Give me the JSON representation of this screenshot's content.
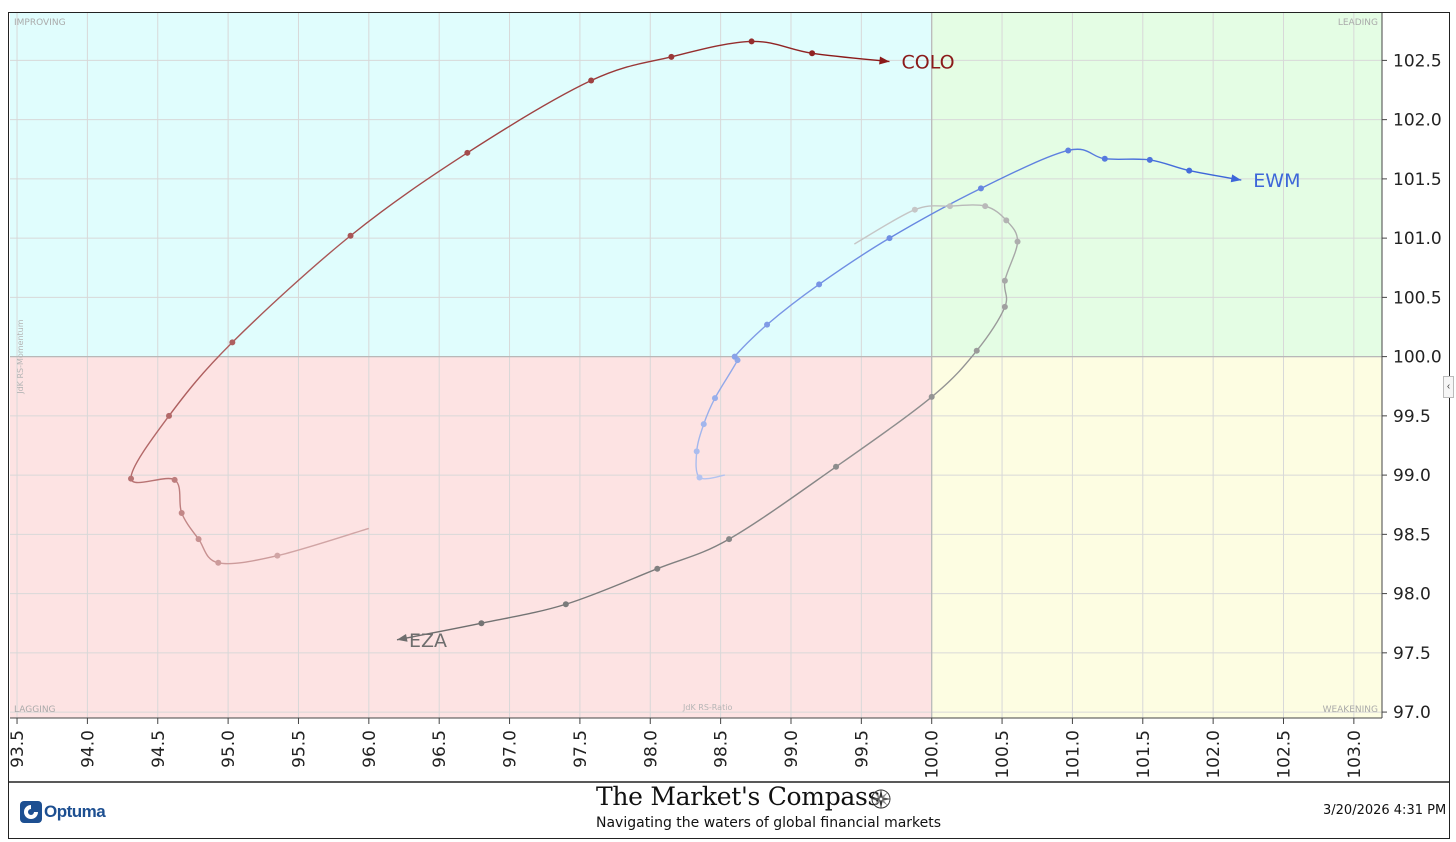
{
  "chart_data": {
    "type": "scatter",
    "subtype": "relative-rotation-graph",
    "xlabel": "JdK RS-Ratio",
    "ylabel": "JdK RS-Momentum",
    "xlim": [
      93.45,
      103.2
    ],
    "ylim": [
      96.95,
      102.9
    ],
    "x_ticks": [
      "93.5",
      "94.0",
      "94.5",
      "95.0",
      "95.5",
      "96.0",
      "96.5",
      "97.0",
      "97.5",
      "98.0",
      "98.5",
      "99.0",
      "99.5",
      "100.0",
      "100.5",
      "101.0",
      "101.5",
      "102.0",
      "102.5",
      "103.0"
    ],
    "y_ticks": [
      "97.0",
      "97.5",
      "98.0",
      "98.5",
      "99.0",
      "99.5",
      "100.0",
      "100.5",
      "101.0",
      "101.5",
      "102.0",
      "102.5"
    ],
    "center": [
      100.0,
      100.0
    ],
    "quadrants": {
      "improving": {
        "label": "IMPROVING",
        "color": "#e0fdfd"
      },
      "leading": {
        "label": "LEADING",
        "color": "#e4fde4"
      },
      "lagging": {
        "label": "LAGGING",
        "color": "#fde3e3"
      },
      "weakening": {
        "label": "WEAKENING",
        "color": "#fdfde2"
      }
    },
    "series": [
      {
        "name": "COLO",
        "color": "#8b1a1a",
        "points": [
          [
            96.0,
            98.55
          ],
          [
            95.35,
            98.32
          ],
          [
            94.93,
            98.26
          ],
          [
            94.79,
            98.46
          ],
          [
            94.67,
            98.68
          ],
          [
            94.62,
            98.96
          ],
          [
            94.31,
            98.97
          ],
          [
            94.58,
            99.5
          ],
          [
            95.03,
            100.12
          ],
          [
            95.87,
            101.02
          ],
          [
            96.7,
            101.72
          ],
          [
            97.58,
            102.33
          ],
          [
            98.15,
            102.53
          ],
          [
            98.72,
            102.66
          ],
          [
            99.15,
            102.56
          ],
          [
            99.7,
            102.49
          ]
        ]
      },
      {
        "name": "EWM",
        "color": "#3d66d9",
        "points": [
          [
            98.53,
            99.0
          ],
          [
            98.35,
            98.98
          ],
          [
            98.33,
            99.2
          ],
          [
            98.38,
            99.43
          ],
          [
            98.46,
            99.65
          ],
          [
            98.62,
            99.97
          ],
          [
            98.6,
            100.0
          ],
          [
            98.83,
            100.27
          ],
          [
            99.2,
            100.61
          ],
          [
            99.7,
            101.0
          ],
          [
            100.35,
            101.42
          ],
          [
            100.97,
            101.74
          ],
          [
            101.23,
            101.67
          ],
          [
            101.55,
            101.66
          ],
          [
            101.83,
            101.57
          ],
          [
            102.2,
            101.49
          ]
        ]
      },
      {
        "name": "EZA",
        "color": "#6e6e6e",
        "points": [
          [
            99.45,
            100.95
          ],
          [
            99.88,
            101.24
          ],
          [
            100.13,
            101.27
          ],
          [
            100.38,
            101.27
          ],
          [
            100.53,
            101.15
          ],
          [
            100.61,
            100.97
          ],
          [
            100.52,
            100.64
          ],
          [
            100.52,
            100.42
          ],
          [
            100.32,
            100.05
          ],
          [
            100.0,
            99.66
          ],
          [
            99.32,
            99.07
          ],
          [
            98.56,
            98.46
          ],
          [
            98.05,
            98.21
          ],
          [
            97.4,
            97.91
          ],
          [
            96.8,
            97.75
          ],
          [
            96.2,
            97.61
          ]
        ]
      }
    ]
  },
  "footer": {
    "title": "The Market's Compass",
    "subtitle": "Navigating the waters of global financial markets",
    "brand": "Optuma",
    "timestamp": "3/20/2026 4:31 PM"
  },
  "controls": {
    "collapse_tab": "‹"
  }
}
